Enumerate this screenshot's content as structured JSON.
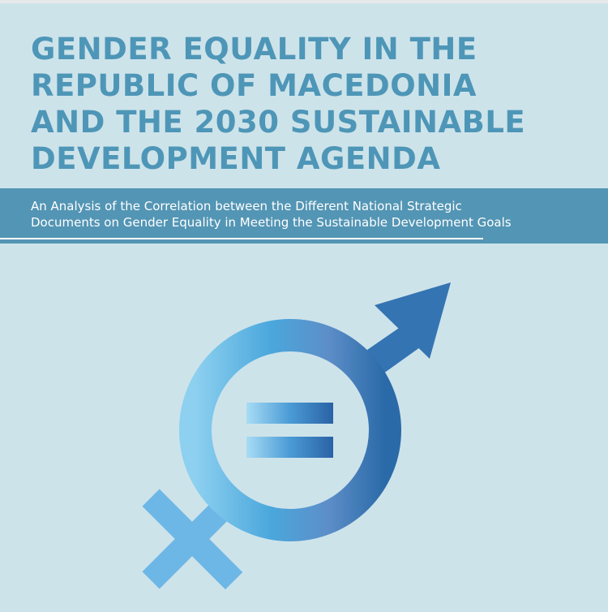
{
  "title": {
    "lines": [
      "GENDER EQUALITY IN THE",
      "REPUBLIC OF MACEDONIA",
      "AND THE 2030 SUSTAINABLE",
      "DEVELOPMENT AGENDA"
    ]
  },
  "subtitle": {
    "lines": [
      "An Analysis of the Correlation between the Different National Strategic",
      "Documents on Gender Equality in Meeting the Sustainable Development Goals"
    ]
  }
}
